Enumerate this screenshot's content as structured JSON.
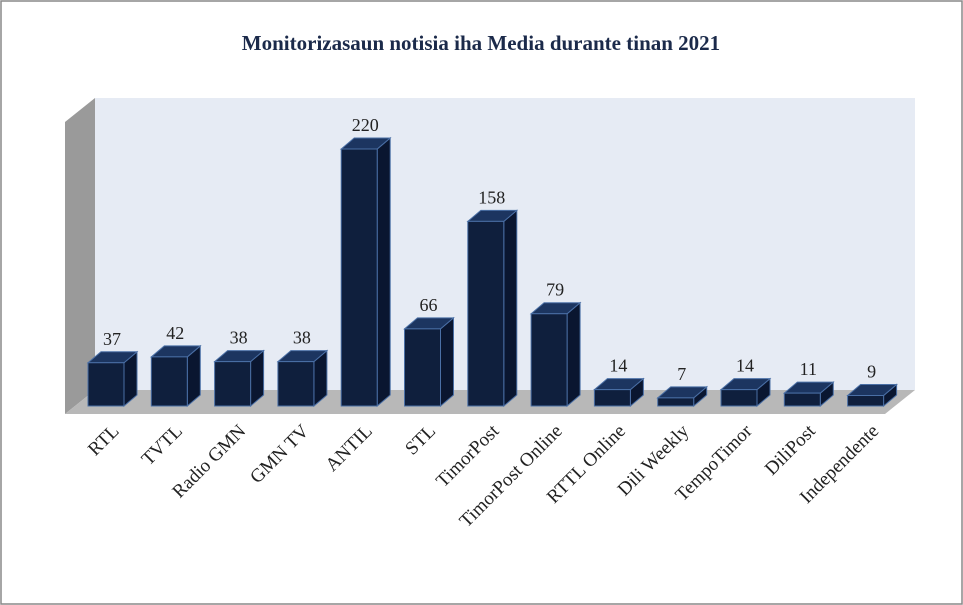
{
  "chart_data": {
    "type": "bar3d",
    "title": "Monitorizasaun notisia iha Media durante tinan 2021",
    "categories": [
      "RTL",
      "TVTL",
      "Radio GMN",
      "GMN TV",
      "ANTIL",
      "STL",
      "TimorPost",
      "TimorPost Online",
      "RTTL Online",
      "Dili Weekly",
      "TempoTimor",
      "DiliPost",
      "Independente"
    ],
    "values": [
      37,
      42,
      38,
      38,
      220,
      66,
      158,
      79,
      14,
      7,
      14,
      11,
      9
    ],
    "color": "#0f1f3d"
  }
}
